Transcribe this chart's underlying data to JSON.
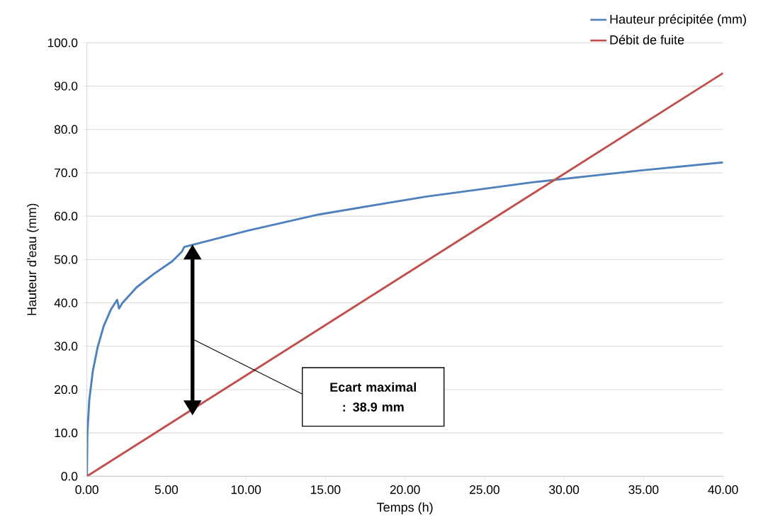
{
  "chart_data": {
    "type": "line",
    "xlabel": "Temps (h)",
    "ylabel": "Hauteur d'eau (mm)",
    "xlim": [
      0,
      40
    ],
    "ylim": [
      0,
      100
    ],
    "xticks": [
      {
        "value": 0,
        "label": "0.00"
      },
      {
        "value": 5,
        "label": "5.00"
      },
      {
        "value": 10,
        "label": "10.00"
      },
      {
        "value": 15,
        "label": "15.00"
      },
      {
        "value": 20,
        "label": "20.00"
      },
      {
        "value": 25,
        "label": "25.00"
      },
      {
        "value": 30,
        "label": "30.00"
      },
      {
        "value": 35,
        "label": "35.00"
      },
      {
        "value": 40,
        "label": "40.00"
      }
    ],
    "yticks": [
      {
        "value": 0,
        "label": "0.0"
      },
      {
        "value": 10,
        "label": "10.0"
      },
      {
        "value": 20,
        "label": "20.0"
      },
      {
        "value": 30,
        "label": "30.0"
      },
      {
        "value": 40,
        "label": "40.0"
      },
      {
        "value": 50,
        "label": "50.0"
      },
      {
        "value": 60,
        "label": "60.0"
      },
      {
        "value": 70,
        "label": "70.0"
      },
      {
        "value": 80,
        "label": "80.0"
      },
      {
        "value": 90,
        "label": "90.0"
      },
      {
        "value": 100,
        "label": "100.0"
      }
    ],
    "grid": "y",
    "legend": "top right",
    "marker": "none",
    "line_style": "solid",
    "series": [
      {
        "name": "Hauteur précipitée (mm)",
        "color": "#4f81bd",
        "x": [
          0,
          0.03,
          0.15,
          0.37,
          0.67,
          1.05,
          1.5,
          1.9,
          2.02,
          2.24,
          3.13,
          4.18,
          5.37,
          5.97,
          6.12,
          10.15,
          14.6,
          21.3,
          28.0,
          34.7,
          40
        ],
        "values": [
          0,
          10,
          17.6,
          24.2,
          29.7,
          34.6,
          38.4,
          40.7,
          38.7,
          40.0,
          43.6,
          46.6,
          49.6,
          51.8,
          52.9,
          56.7,
          60.4,
          64.5,
          67.8,
          70.5,
          72.4
        ]
      },
      {
        "name": "Débit de fuite",
        "color": "#c0504d",
        "x": [
          0,
          40
        ],
        "values": [
          0,
          93
        ]
      }
    ],
    "annotations": [
      "Ecart maximal : 38.9 mm"
    ]
  }
}
